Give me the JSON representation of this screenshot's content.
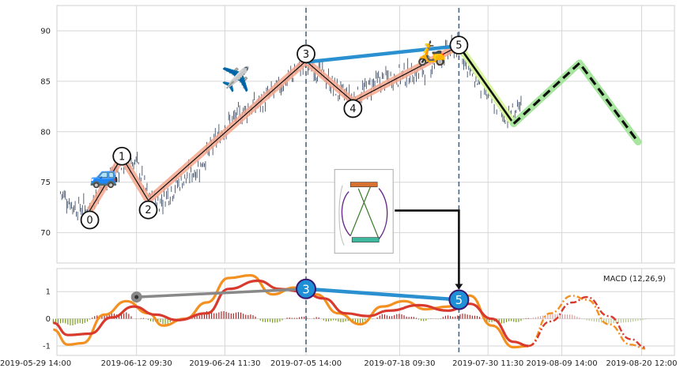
{
  "chart_data": [
    {
      "panel": "price",
      "type": "candlestick",
      "x_start": "2019-05-29 14:00",
      "x_end": "2019-08-23 14:00",
      "ylim": [
        67,
        92.5
      ],
      "yticks": [
        70,
        75,
        80,
        85,
        90
      ],
      "grid": true,
      "price_path": [
        {
          "t": "2019-06-02 00:00",
          "v": 74.0
        },
        {
          "t": "2019-06-04 00:00",
          "v": 72.5
        },
        {
          "t": "2019-06-06 00:00",
          "v": 72.4
        },
        {
          "t": "2019-06-08 00:00",
          "v": 75.0
        },
        {
          "t": "2019-06-10 09:30",
          "v": 76.8
        },
        {
          "t": "2019-06-12 09:30",
          "v": 77.0
        },
        {
          "t": "2019-06-14 00:00",
          "v": 73.5
        },
        {
          "t": "2019-06-15 12:00",
          "v": 73.0
        },
        {
          "t": "2019-06-18 00:00",
          "v": 74.8
        },
        {
          "t": "2019-06-21 00:00",
          "v": 76.5
        },
        {
          "t": "2019-06-24 11:30",
          "v": 80.5
        },
        {
          "t": "2019-06-27 00:00",
          "v": 82.0
        },
        {
          "t": "2019-06-30 00:00",
          "v": 83.2
        },
        {
          "t": "2019-07-02 00:00",
          "v": 84.5
        },
        {
          "t": "2019-07-05 14:00",
          "v": 86.9
        },
        {
          "t": "2019-07-08 00:00",
          "v": 85.5
        },
        {
          "t": "2019-07-10 00:00",
          "v": 84.0
        },
        {
          "t": "2019-07-12 00:00",
          "v": 83.2
        },
        {
          "t": "2019-07-15 00:00",
          "v": 84.8
        },
        {
          "t": "2019-07-18 09:30",
          "v": 85.6
        },
        {
          "t": "2019-07-21 00:00",
          "v": 85.8
        },
        {
          "t": "2019-07-24 00:00",
          "v": 87.5
        },
        {
          "t": "2019-07-26 12:00",
          "v": 88.5
        },
        {
          "t": "2019-07-28 00:00",
          "v": 86.0
        },
        {
          "t": "2019-07-30 11:30",
          "v": 83.5
        },
        {
          "t": "2019-08-02 00:00",
          "v": 81.5
        },
        {
          "t": "2019-08-04 00:00",
          "v": 82.2
        }
      ],
      "zigzag": [
        {
          "label": "0",
          "t": "2019-06-06 00:00",
          "v": 72.2
        },
        {
          "label": "1",
          "t": "2019-06-10 09:30",
          "v": 77.5
        },
        {
          "label": "2",
          "t": "2019-06-14 00:00",
          "v": 73.2
        },
        {
          "label": "3",
          "t": "2019-07-05 14:00",
          "v": 87.0
        },
        {
          "label": "4",
          "t": "2019-07-12 00:00",
          "v": 83.0
        },
        {
          "label": "5",
          "t": "2019-07-26 12:00",
          "v": 88.5
        }
      ],
      "projection_solid": [
        {
          "t": "2019-07-26 12:00",
          "v": 88.5
        },
        {
          "t": "2019-08-03 00:00",
          "v": 80.8
        }
      ],
      "projection_dashed": [
        {
          "t": "2019-08-03 00:00",
          "v": 80.8
        },
        {
          "t": "2019-08-12 00:00",
          "v": 86.8
        },
        {
          "t": "2019-08-20 00:00",
          "v": 79.0
        }
      ],
      "link_3_5": [
        {
          "t": "2019-07-05 14:00",
          "v": 86.9
        },
        {
          "t": "2019-07-26 12:00",
          "v": 88.5
        }
      ],
      "vlines": [
        "2019-07-05 14:00",
        "2019-07-26 12:00"
      ],
      "icons": [
        {
          "name": "car-icon",
          "glyph": "🚙",
          "t": "2019-06-08 00:00",
          "v": 75.7
        },
        {
          "name": "airplane-icon",
          "glyph": "✈️",
          "t": "2019-06-26 00:00",
          "v": 85.2
        },
        {
          "name": "scooter-icon",
          "glyph": "🛵",
          "t": "2019-07-22 18:00",
          "v": 87.8
        }
      ]
    },
    {
      "panel": "macd",
      "type": "line",
      "legend": "MACD (12,26,9)",
      "ylim": [
        -1.35,
        1.85
      ],
      "yticks": [
        -1,
        0,
        1
      ],
      "macd_orange": [
        {
          "t": "2019-06-01",
          "v": -0.4
        },
        {
          "t": "2019-06-03",
          "v": -0.95
        },
        {
          "t": "2019-06-05",
          "v": -0.9
        },
        {
          "t": "2019-06-08",
          "v": 0.15
        },
        {
          "t": "2019-06-11",
          "v": 0.65
        },
        {
          "t": "2019-06-14",
          "v": 0.2
        },
        {
          "t": "2019-06-16",
          "v": -0.25
        },
        {
          "t": "2019-06-19",
          "v": 0.0
        },
        {
          "t": "2019-06-22",
          "v": 0.6
        },
        {
          "t": "2019-06-25",
          "v": 1.5
        },
        {
          "t": "2019-06-28",
          "v": 1.6
        },
        {
          "t": "2019-07-01",
          "v": 0.9
        },
        {
          "t": "2019-07-04",
          "v": 1.15
        },
        {
          "t": "2019-07-07",
          "v": 0.9
        },
        {
          "t": "2019-07-10",
          "v": 0.2
        },
        {
          "t": "2019-07-13",
          "v": -0.2
        },
        {
          "t": "2019-07-16",
          "v": 0.45
        },
        {
          "t": "2019-07-19",
          "v": 0.65
        },
        {
          "t": "2019-07-22",
          "v": 0.35
        },
        {
          "t": "2019-07-25",
          "v": 0.45
        },
        {
          "t": "2019-07-28",
          "v": 0.85
        },
        {
          "t": "2019-07-31",
          "v": -0.25
        },
        {
          "t": "2019-08-03",
          "v": -1.05
        },
        {
          "t": "2019-08-05",
          "v": -1.0
        }
      ],
      "macd_red": [
        {
          "t": "2019-06-01",
          "v": -0.15
        },
        {
          "t": "2019-06-03",
          "v": -0.6
        },
        {
          "t": "2019-06-06",
          "v": -0.55
        },
        {
          "t": "2019-06-09",
          "v": 0.05
        },
        {
          "t": "2019-06-12",
          "v": 0.45
        },
        {
          "t": "2019-06-15",
          "v": 0.15
        },
        {
          "t": "2019-06-18",
          "v": -0.05
        },
        {
          "t": "2019-06-22",
          "v": 0.2
        },
        {
          "t": "2019-06-25",
          "v": 1.1
        },
        {
          "t": "2019-06-29",
          "v": 1.4
        },
        {
          "t": "2019-07-02",
          "v": 1.1
        },
        {
          "t": "2019-07-05",
          "v": 1.0
        },
        {
          "t": "2019-07-08",
          "v": 0.75
        },
        {
          "t": "2019-07-11",
          "v": 0.2
        },
        {
          "t": "2019-07-14",
          "v": 0.1
        },
        {
          "t": "2019-07-17",
          "v": 0.3
        },
        {
          "t": "2019-07-21",
          "v": 0.5
        },
        {
          "t": "2019-07-25",
          "v": 0.3
        },
        {
          "t": "2019-07-28",
          "v": 0.55
        },
        {
          "t": "2019-07-31",
          "v": 0.0
        },
        {
          "t": "2019-08-03",
          "v": -0.85
        },
        {
          "t": "2019-08-05",
          "v": -1.0
        }
      ],
      "proj_orange": [
        {
          "t": "2019-08-05",
          "v": -1.0
        },
        {
          "t": "2019-08-08",
          "v": 0.2
        },
        {
          "t": "2019-08-11",
          "v": 0.85
        },
        {
          "t": "2019-08-13",
          "v": 0.7
        },
        {
          "t": "2019-08-16",
          "v": -0.2
        },
        {
          "t": "2019-08-19",
          "v": -0.95
        },
        {
          "t": "2019-08-21",
          "v": -1.1
        }
      ],
      "proj_red": [
        {
          "t": "2019-08-05",
          "v": -1.0
        },
        {
          "t": "2019-08-08",
          "v": -0.1
        },
        {
          "t": "2019-08-11",
          "v": 0.6
        },
        {
          "t": "2019-08-13",
          "v": 0.8
        },
        {
          "t": "2019-08-16",
          "v": 0.1
        },
        {
          "t": "2019-08-19",
          "v": -0.75
        },
        {
          "t": "2019-08-21",
          "v": -1.05
        }
      ],
      "gray_link": [
        {
          "t": "2019-06-12 09:30",
          "v": 0.8
        },
        {
          "t": "2019-07-05 14:00",
          "v": 1.1
        }
      ],
      "blue_link": [
        {
          "t": "2019-07-05 14:00",
          "v": 1.1
        },
        {
          "t": "2019-07-26 12:00",
          "v": 0.7
        }
      ],
      "markers": [
        {
          "label": "3",
          "t": "2019-07-05 14:00",
          "v": 1.1
        },
        {
          "label": "5",
          "t": "2019-07-26 12:00",
          "v": 0.7
        }
      ],
      "gray_dot": {
        "t": "2019-06-12 09:30",
        "v": 0.8
      }
    }
  ],
  "x_ticks": [
    "2019-05-29 14:00",
    "2019-06-12 09:30",
    "2019-06-24 11:30",
    "2019-07-05 14:00",
    "2019-07-18 09:30",
    "2019-07-30 11:30",
    "2019-08-09 14:00",
    "2019-08-20 12:00"
  ],
  "inset": {
    "name": "roller-coaster-inset",
    "t": "2019-07-17 12:00",
    "v": 67.5
  },
  "colors": {
    "grid": "#d6d6d6",
    "candle": "#2c3e5a",
    "zigzag_band": "#f4a78e",
    "zigzag_line": "#111111",
    "link_blue": "#2a90d0",
    "proj_green": "#a8e6a0",
    "macd_orange": "#f39020",
    "macd_red": "#d83a2e",
    "hist_pos": "#a8282a",
    "hist_neg": "#7a9a1e",
    "vline": "#4a6580",
    "marker_blue": "#1f8fd6",
    "marker_stroke": "#3a1670",
    "gray": "#888888"
  }
}
